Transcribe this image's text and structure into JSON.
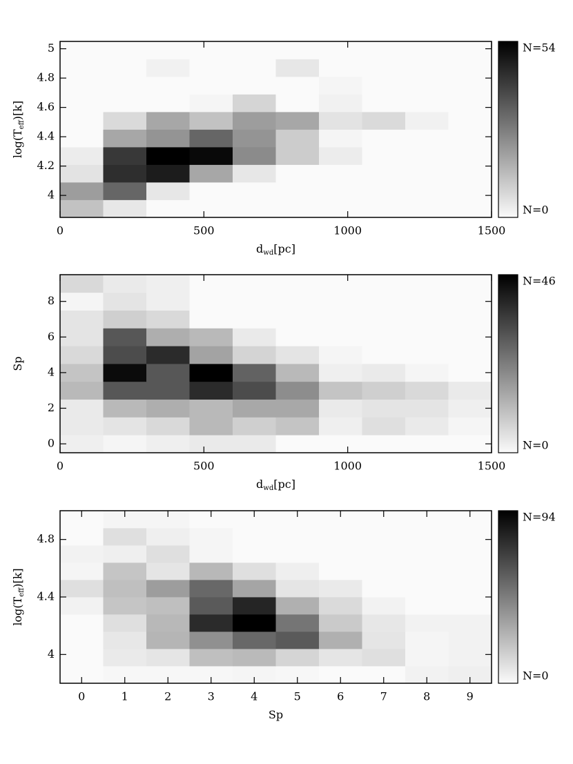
{
  "chart_data": [
    {
      "type": "heatmap",
      "xlabel": [
        "d",
        "wd",
        "[pc]"
      ],
      "ylabel": [
        "log(T",
        "eff",
        ")[k]"
      ],
      "xlim": [
        0,
        1500
      ],
      "xticks": [
        0,
        500,
        1000,
        1500
      ],
      "ylim": [
        3.85,
        5.05
      ],
      "yticks": [
        4,
        4.2,
        4.4,
        4.6,
        4.8,
        5
      ],
      "xbins": [
        0,
        150,
        300,
        450,
        600,
        750,
        900,
        1050,
        1200,
        1350,
        1500
      ],
      "ybins": [
        3.85,
        3.97,
        4.09,
        4.21,
        4.33,
        4.45,
        4.57,
        4.69,
        4.81,
        4.93,
        5.05
      ],
      "z": [
        [
          12,
          4,
          0,
          0,
          0,
          0,
          0,
          0,
          0,
          0
        ],
        [
          20,
          32,
          4,
          0,
          0,
          0,
          0,
          0,
          0,
          0
        ],
        [
          5,
          44,
          48,
          18,
          4,
          0,
          0,
          0,
          0,
          0
        ],
        [
          3,
          42,
          54,
          52,
          24,
          10,
          3,
          0,
          0,
          0
        ],
        [
          0,
          18,
          22,
          32,
          22,
          10,
          1,
          0,
          0,
          0
        ],
        [
          0,
          7,
          18,
          12,
          20,
          18,
          5,
          7,
          2,
          0
        ],
        [
          0,
          0,
          0,
          1,
          8,
          0,
          2,
          0,
          0,
          0
        ],
        [
          0,
          0,
          0,
          0,
          0,
          0,
          1,
          0,
          0,
          0
        ],
        [
          0,
          0,
          2,
          0,
          0,
          4,
          0,
          0,
          0,
          0
        ],
        [
          0,
          0,
          0,
          0,
          0,
          0,
          0,
          0,
          0,
          0
        ]
      ],
      "clim": [
        0,
        54
      ],
      "cticks": [
        {
          "value": 0,
          "label": "N=0"
        },
        {
          "value": 54,
          "label": "N=54"
        }
      ]
    },
    {
      "type": "heatmap",
      "xlabel": [
        "d",
        "wd",
        "[pc]"
      ],
      "ylabel": [
        "Sp"
      ],
      "xlim": [
        0,
        1500
      ],
      "xticks": [
        0,
        500,
        1000,
        1500
      ],
      "ylim": [
        -0.5,
        9.5
      ],
      "yticks": [
        0,
        2,
        4,
        6,
        8
      ],
      "xbins": [
        0,
        150,
        300,
        450,
        600,
        750,
        900,
        1050,
        1200,
        1350,
        1500
      ],
      "ybins": [
        -0.5,
        0.5,
        1.5,
        2.5,
        3.5,
        4.5,
        5.5,
        6.5,
        7.5,
        8.5,
        9.5
      ],
      "z": [
        [
          2,
          1,
          2,
          3,
          3,
          0,
          0,
          0,
          0,
          0
        ],
        [
          3,
          4,
          6,
          12,
          8,
          10,
          2,
          5,
          3,
          1
        ],
        [
          3,
          12,
          14,
          12,
          15,
          15,
          3,
          4,
          4,
          2
        ],
        [
          12,
          30,
          30,
          38,
          32,
          20,
          10,
          8,
          6,
          3
        ],
        [
          10,
          44,
          30,
          46,
          28,
          12,
          2,
          3,
          1,
          0
        ],
        [
          6,
          32,
          38,
          16,
          7,
          4,
          1,
          0,
          0,
          0
        ],
        [
          4,
          30,
          14,
          12,
          3,
          0,
          0,
          0,
          0,
          0
        ],
        [
          4,
          8,
          6,
          0,
          0,
          0,
          0,
          0,
          0,
          0
        ],
        [
          1,
          4,
          2,
          0,
          0,
          0,
          0,
          0,
          0,
          0
        ],
        [
          6,
          3,
          2,
          0,
          0,
          0,
          0,
          0,
          0,
          0
        ]
      ],
      "clim": [
        0,
        46
      ],
      "cticks": [
        {
          "value": 0,
          "label": "N=0"
        },
        {
          "value": 46,
          "label": "N=46"
        }
      ]
    },
    {
      "type": "heatmap",
      "xlabel": [
        "Sp"
      ],
      "ylabel": [
        "log(T",
        "eff",
        ")[k]"
      ],
      "xlim": [
        -0.5,
        9.5
      ],
      "xticks": [
        0,
        1,
        2,
        3,
        4,
        5,
        6,
        7,
        8,
        9
      ],
      "ylim": [
        3.8,
        5.0
      ],
      "yticks": [
        4,
        4.4,
        4.8
      ],
      "xbins": [
        -0.5,
        0.5,
        1.5,
        2.5,
        3.5,
        4.5,
        5.5,
        6.5,
        7.5,
        8.5,
        9.5
      ],
      "ybins": [
        3.8,
        3.92,
        4.04,
        4.16,
        4.28,
        4.4,
        4.52,
        4.64,
        4.76,
        4.88,
        5.0
      ],
      "z": [
        [
          0,
          1,
          1,
          1,
          2,
          1,
          0,
          0,
          3,
          4
        ],
        [
          0,
          6,
          8,
          22,
          24,
          14,
          8,
          10,
          2,
          3
        ],
        [
          0,
          7,
          26,
          40,
          55,
          60,
          28,
          8,
          2,
          3
        ],
        [
          0,
          10,
          25,
          78,
          94,
          50,
          18,
          7,
          3,
          3
        ],
        [
          3,
          20,
          22,
          60,
          80,
          28,
          12,
          3,
          0,
          0
        ],
        [
          10,
          22,
          35,
          55,
          32,
          8,
          6,
          0,
          0,
          0
        ],
        [
          2,
          20,
          8,
          25,
          10,
          4,
          0,
          0,
          0,
          0
        ],
        [
          3,
          4,
          10,
          2,
          0,
          0,
          0,
          0,
          0,
          0
        ],
        [
          0,
          10,
          4,
          2,
          0,
          0,
          0,
          0,
          0,
          0
        ],
        [
          0,
          2,
          2,
          0,
          0,
          0,
          0,
          0,
          0,
          0
        ]
      ],
      "clim": [
        0,
        94
      ],
      "cticks": [
        {
          "value": 0,
          "label": "N=0"
        },
        {
          "value": 94,
          "label": "N=94"
        }
      ]
    }
  ]
}
